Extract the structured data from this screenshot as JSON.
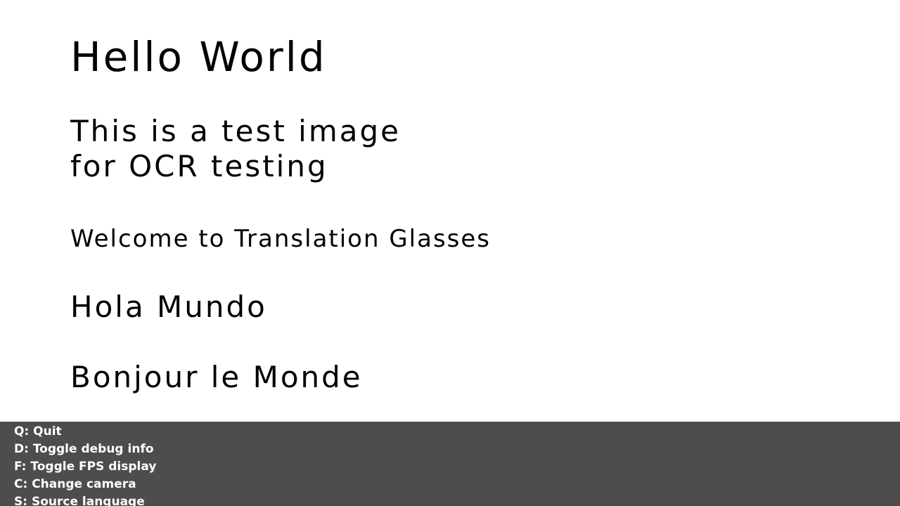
{
  "content": {
    "title": "Hello World",
    "line1": "This is a test image",
    "line2": "for OCR testing",
    "line3": "Welcome to Translation Glasses",
    "line4": "Hola Mundo",
    "line5": "Bonjour le Monde"
  },
  "help": {
    "items": [
      "Q: Quit",
      "D: Toggle debug info",
      "F: Toggle FPS display",
      "C: Change camera",
      "S: Source language"
    ]
  },
  "colors": {
    "background": "#ffffff",
    "text": "#000000",
    "help_bar": "#4d4d4d",
    "help_text": "#ffffff"
  }
}
